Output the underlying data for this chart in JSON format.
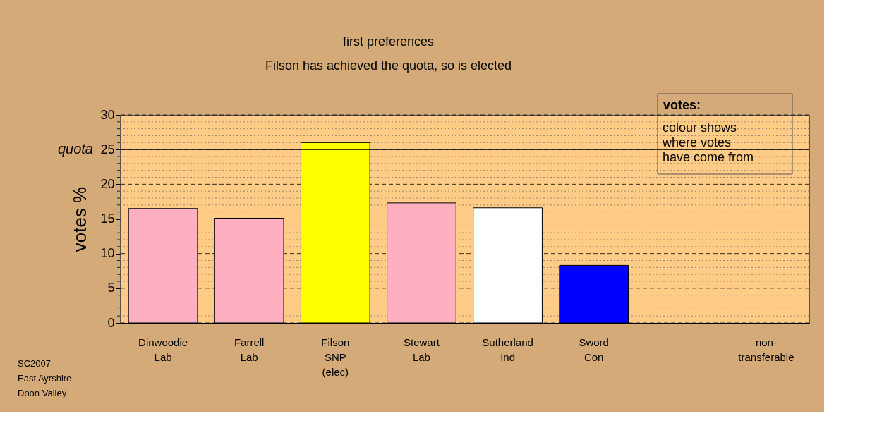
{
  "chart_data": {
    "type": "bar",
    "title": "first preferences",
    "subtitle": "Filson has achieved the quota, so is elected",
    "ylabel": "votes %",
    "categories": [
      "Dinwoodie\nLab",
      "Farrell\nLab",
      "Filson\nSNP\n(elec)",
      "Stewart\nLab",
      "Sutherland\nInd",
      "Sword\nCon",
      null,
      "non-\ntransferable"
    ],
    "values": [
      16.5,
      15.1,
      26.0,
      17.3,
      16.6,
      8.3,
      null,
      null
    ],
    "colors": [
      "#ffb0c0",
      "#ffb0c0",
      "#ffff00",
      "#ffb0c0",
      "#ffffff",
      "#0000ff",
      null,
      null
    ],
    "ylim": [
      0,
      30
    ],
    "yticks": [
      0,
      {
        "value": 1,
        "label": null
      },
      {
        "value": 2,
        "label": null
      },
      {
        "value": 3,
        "label": null
      },
      {
        "value": 4,
        "label": null
      },
      5,
      {
        "value": 6,
        "label": null
      },
      {
        "value": 7,
        "label": null
      },
      {
        "value": 8,
        "label": null
      },
      {
        "value": 9,
        "label": null
      },
      10,
      {
        "value": 11,
        "label": null
      },
      {
        "value": 12,
        "label": null
      },
      {
        "value": 13,
        "label": null
      },
      {
        "value": 14,
        "label": null
      },
      15,
      {
        "value": 16,
        "label": null
      },
      {
        "value": 17,
        "label": null
      },
      {
        "value": 18,
        "label": null
      },
      {
        "value": 19,
        "label": null
      },
      20,
      {
        "value": 21,
        "label": null
      },
      {
        "value": 22,
        "label": null
      },
      {
        "value": 23,
        "label": null
      },
      {
        "value": 24,
        "label": null
      },
      25,
      {
        "value": 26,
        "label": null
      },
      {
        "value": 27,
        "label": null
      },
      {
        "value": 28,
        "label": null
      },
      {
        "value": 29,
        "label": null
      },
      30
    ],
    "grid": "y",
    "ref_lines": [
      {
        "axis": "y",
        "value": 25,
        "label": "quota",
        "color": "#000000",
        "line_style": "solid"
      }
    ],
    "annotations": [
      "votes:",
      "colour shows\nwhere votes\nhave come from",
      "SC2007\nEast Ayrshire\nDoon Valley"
    ]
  }
}
